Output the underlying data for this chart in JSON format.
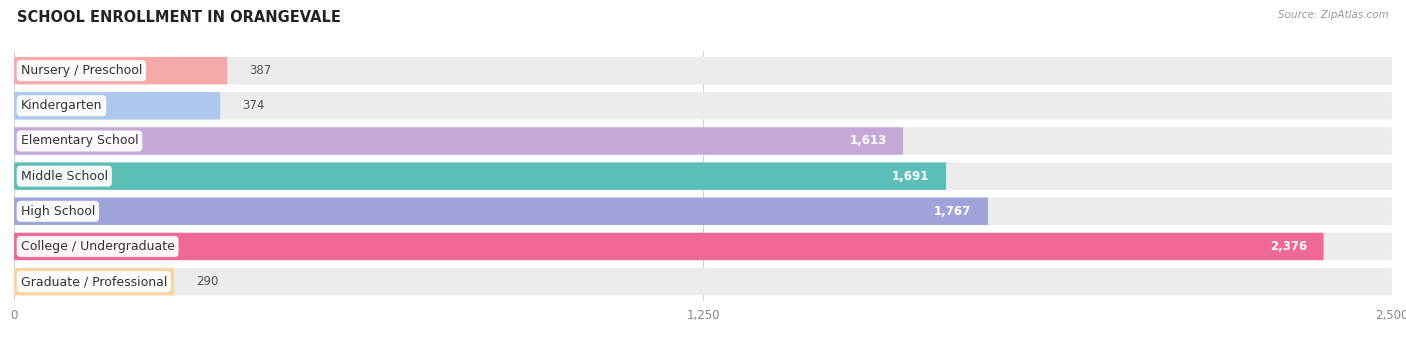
{
  "title": "SCHOOL ENROLLMENT IN ORANGEVALE",
  "source": "Source: ZipAtlas.com",
  "categories": [
    "Nursery / Preschool",
    "Kindergarten",
    "Elementary School",
    "Middle School",
    "High School",
    "College / Undergraduate",
    "Graduate / Professional"
  ],
  "values": [
    387,
    374,
    1613,
    1691,
    1767,
    2376,
    290
  ],
  "bar_colors": [
    "#f5aaaa",
    "#adc8ec",
    "#c4a8d8",
    "#5bbfb8",
    "#9fa3d8",
    "#f06894",
    "#fad4a0"
  ],
  "xlim": [
    0,
    2500
  ],
  "xticks": [
    0,
    1250,
    2500
  ],
  "xticklabels": [
    "0",
    "1,250",
    "2,500"
  ],
  "background_color": "#ffffff",
  "grid_color": "#d0d0d0",
  "bar_bg_color": "#ececec",
  "title_fontsize": 10.5,
  "label_fontsize": 9,
  "value_fontsize": 8.5,
  "bar_height": 0.78,
  "figsize": [
    14.06,
    3.42
  ],
  "dpi": 100
}
